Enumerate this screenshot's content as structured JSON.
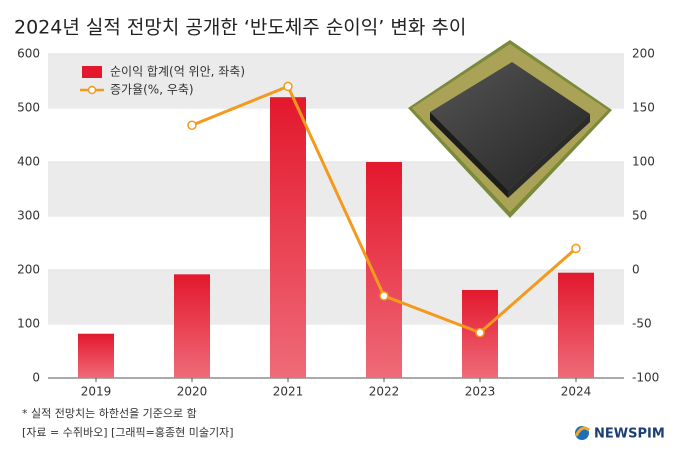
{
  "chart_data": {
    "type": "bar",
    "title": "2024년 실적 전망치 공개한 ‘반도체주 순이익’ 변화 추이",
    "categories": [
      "2019",
      "2020",
      "2021",
      "2022",
      "2023",
      "2024"
    ],
    "series": [
      {
        "name": "순이익 합계(억 위안, 좌축)",
        "type": "bar",
        "color": "#e3182d",
        "values": [
          82,
          192,
          520,
          400,
          163,
          195
        ]
      },
      {
        "name": "증가율(%, 우축)",
        "type": "line",
        "axis": "y2",
        "color": "#f39a1e",
        "values": [
          null,
          134,
          170,
          -24,
          -58,
          20
        ]
      }
    ],
    "ylim": [
      0,
      600
    ],
    "yticks": [
      0,
      100,
      200,
      300,
      400,
      500,
      600
    ],
    "y2lim": [
      -100,
      200
    ],
    "y2ticks": [
      -100,
      -50,
      0,
      50,
      100,
      150,
      200
    ],
    "grid": true,
    "legend": "top-left",
    "notes": [
      "* 실적 전망치는 하한선을 기준으로 함",
      "[자료 = 수쥐바오] [그래픽=홍종현 미술기자]"
    ],
    "logo": "NEWSPIM"
  }
}
